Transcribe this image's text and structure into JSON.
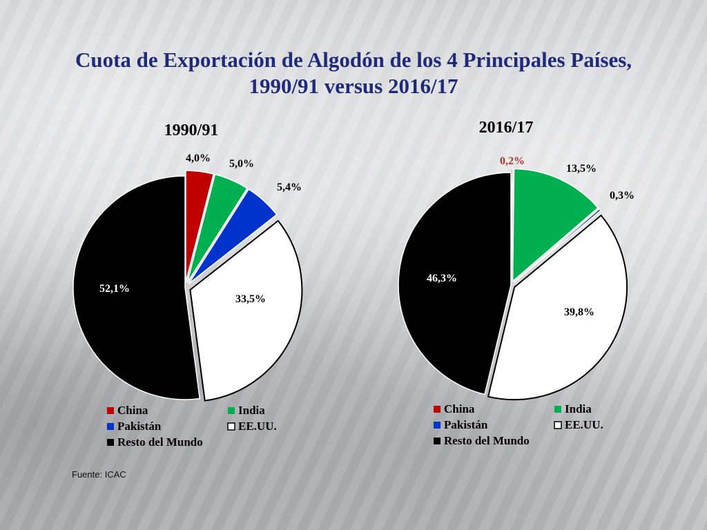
{
  "title_line1": "Cuota de Exportación de Algodón de los 4 Principales Países,",
  "title_line2": "1990/91 versus 2016/17",
  "source": "Fuente: ICAC",
  "colors": {
    "China": "#c00000",
    "India": "#00b050",
    "Pakistán": "#0033cc",
    "EE.UU.": "#ffffff",
    "Resto del Mundo": "#000000",
    "title": "#1f2a7a"
  },
  "chart_data": [
    {
      "type": "pie",
      "title": "1990/91",
      "categories": [
        "China",
        "India",
        "Pakistán",
        "EE.UU.",
        "Resto del Mundo"
      ],
      "values": [
        4.0,
        5.0,
        5.4,
        33.5,
        52.1
      ],
      "data_labels": [
        "4,0%",
        "5,0%",
        "5,4%",
        "33,5%",
        "52,1%"
      ],
      "legend": [
        "China",
        "India",
        "Pakistán",
        "EE.UU.",
        "Resto del Mundo"
      ],
      "legend_position": "bottom"
    },
    {
      "type": "pie",
      "title": "2016/17",
      "categories": [
        "China",
        "India",
        "Pakistán",
        "EE.UU.",
        "Resto del Mundo"
      ],
      "values": [
        0.2,
        13.5,
        0.3,
        39.8,
        46.3
      ],
      "data_labels": [
        "0,2%",
        "13,5%",
        "0,3%",
        "39,8%",
        "46,3%"
      ],
      "legend": [
        "China",
        "India",
        "Pakistán",
        "EE.UU.",
        "Resto del Mundo"
      ],
      "legend_position": "bottom"
    }
  ]
}
